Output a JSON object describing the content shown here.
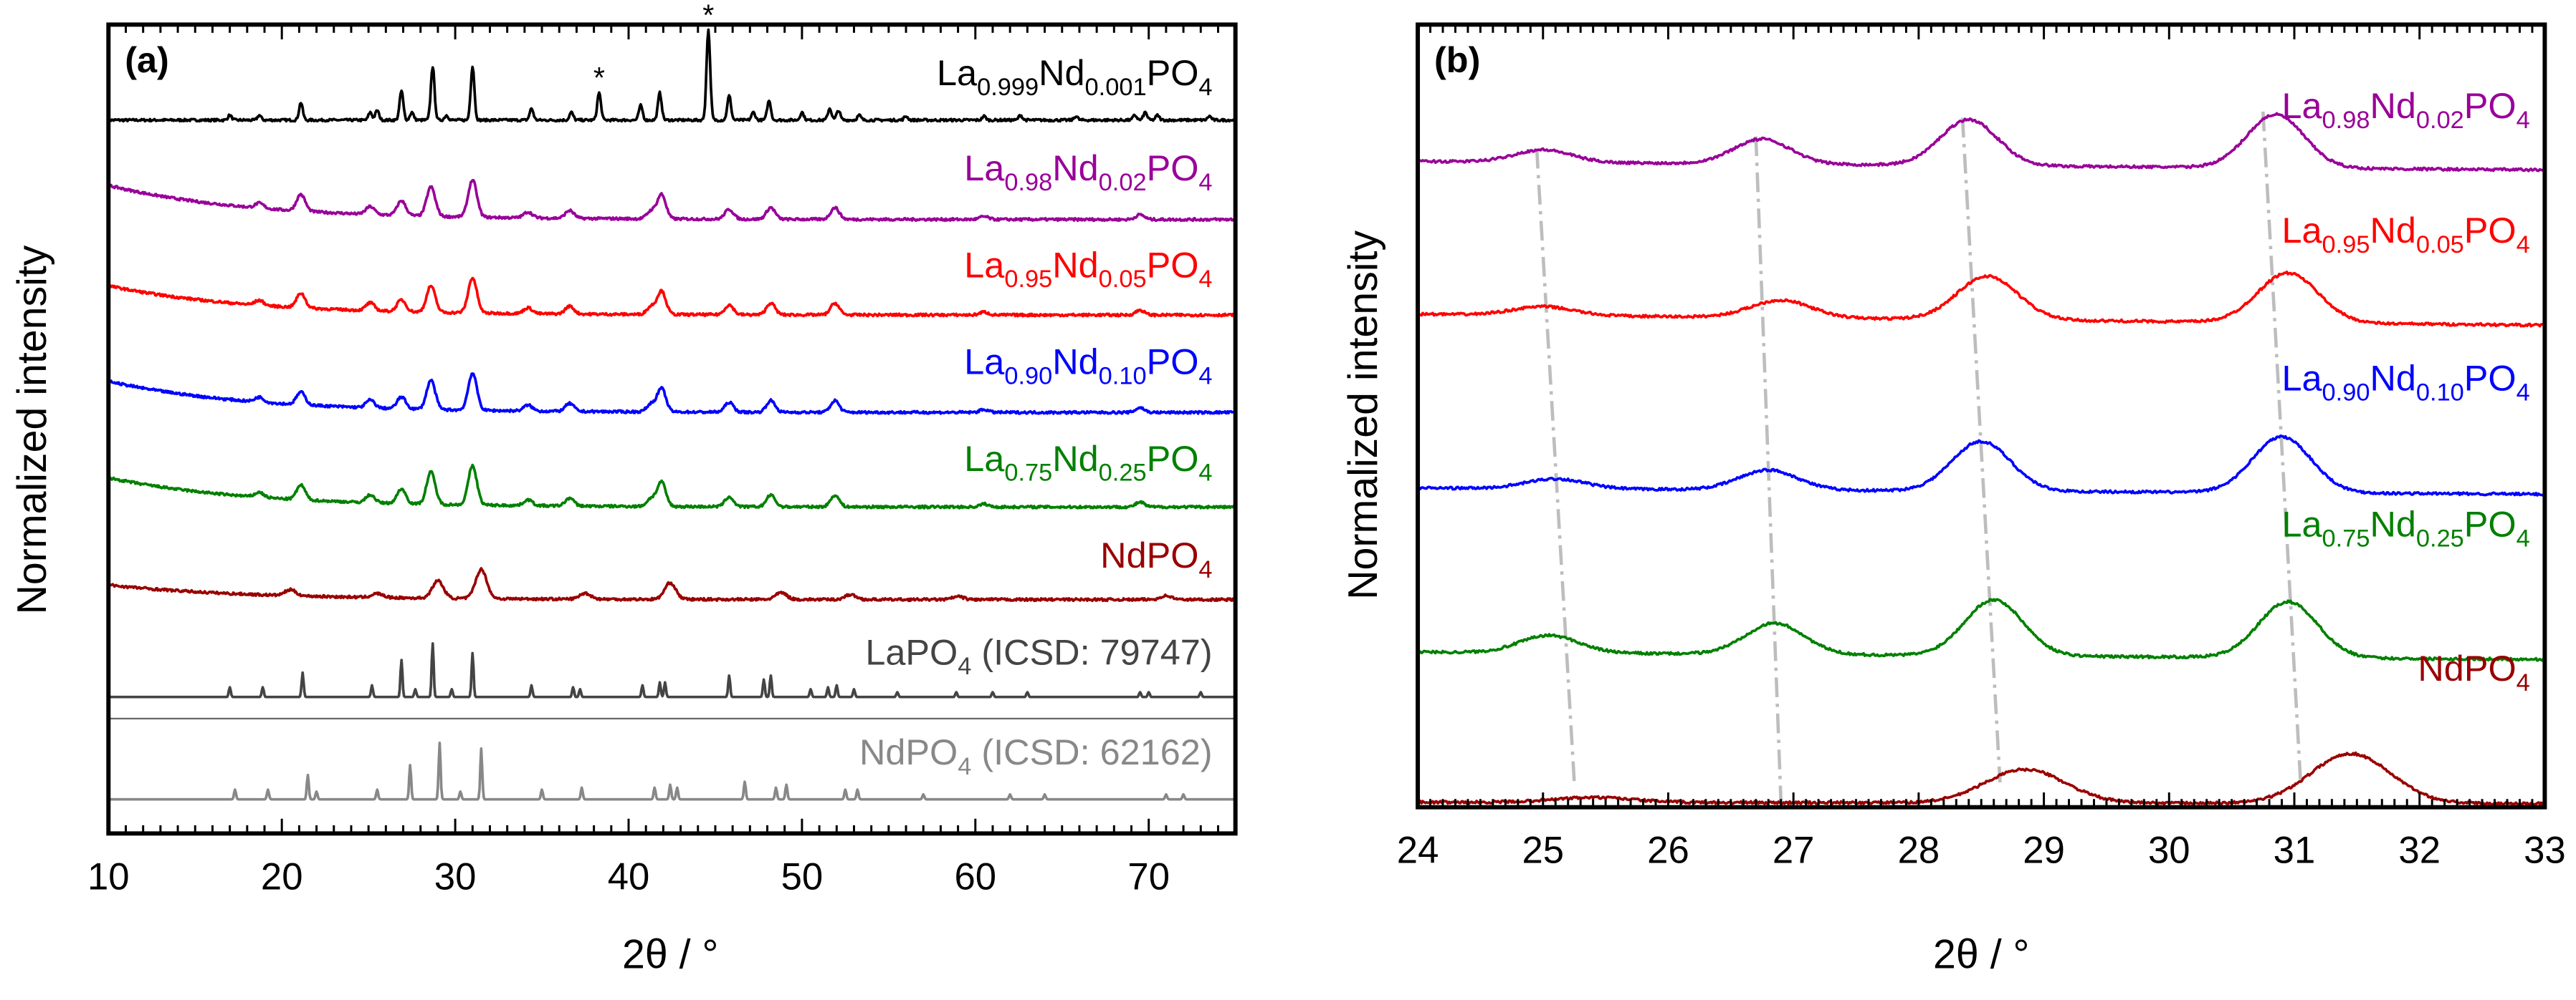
{
  "chart_data": [
    {
      "panel_label": "(a)",
      "type": "line",
      "xlabel": "2θ / °",
      "ylabel": "Normalized intensity",
      "xlim": [
        10,
        75
      ],
      "ylim": [
        0,
        8.3
      ],
      "xticks": [
        "10",
        "20",
        "30",
        "40",
        "50",
        "60",
        "70"
      ],
      "xtick_values": [
        10,
        20,
        30,
        40,
        50,
        60,
        70
      ],
      "grid": false,
      "annotations": [
        {
          "text": "*",
          "x": 38.3
        },
        {
          "text": "*",
          "x": 44.6
        }
      ],
      "series": [
        {
          "name": "La0.999Nd0.001PO4",
          "label_parts": [
            "La",
            "0.999",
            "Nd",
            "0.001",
            "PO",
            "4"
          ],
          "color": "#000000",
          "offset": 7.32,
          "width": 0.15,
          "background": 0.0,
          "peaks": [
            [
              17,
              0.05
            ],
            [
              18.7,
              0.05
            ],
            [
              21.1,
              0.18
            ],
            [
              25.1,
              0.08
            ],
            [
              25.5,
              0.1
            ],
            [
              26.9,
              0.3
            ],
            [
              27.5,
              0.08
            ],
            [
              28.7,
              0.55
            ],
            [
              29.5,
              0.05
            ],
            [
              31.0,
              0.55
            ],
            [
              34.4,
              0.12
            ],
            [
              36.7,
              0.08
            ],
            [
              38.3,
              0.28
            ],
            [
              40.7,
              0.15
            ],
            [
              41.8,
              0.28
            ],
            [
              44.6,
              0.92
            ],
            [
              45.8,
              0.25
            ],
            [
              47.2,
              0.08
            ],
            [
              48.1,
              0.2
            ],
            [
              50.0,
              0.08
            ],
            [
              51.6,
              0.12
            ],
            [
              52.1,
              0.1
            ],
            [
              53.3,
              0.05
            ],
            [
              56,
              0.04
            ],
            [
              60.5,
              0.04
            ],
            [
              62.6,
              0.05
            ],
            [
              65.8,
              0.04
            ],
            [
              69.2,
              0.05
            ],
            [
              69.8,
              0.08
            ],
            [
              70.5,
              0.05
            ],
            [
              73.5,
              0.04
            ]
          ]
        },
        {
          "name": "La0.98Nd0.02PO4",
          "label_parts": [
            "La",
            "0.98",
            "Nd",
            "0.02",
            "PO",
            "4"
          ],
          "color": "#990099",
          "offset": 6.3,
          "width": 0.35,
          "background": 0.35,
          "peaks": [
            [
              18.7,
              0.05
            ],
            [
              21.1,
              0.17
            ],
            [
              25.1,
              0.08
            ],
            [
              26.9,
              0.15
            ],
            [
              28.6,
              0.3
            ],
            [
              31.0,
              0.38
            ],
            [
              34.2,
              0.06
            ],
            [
              36.6,
              0.08
            ],
            [
              41.3,
              0.08
            ],
            [
              41.9,
              0.25
            ],
            [
              45.8,
              0.1
            ],
            [
              48.2,
              0.12
            ],
            [
              51.9,
              0.12
            ],
            [
              60.5,
              0.03
            ],
            [
              69.5,
              0.05
            ]
          ]
        },
        {
          "name": "La0.95Nd0.05PO4",
          "label_parts": [
            "La",
            "0.95",
            "Nd",
            "0.05",
            "PO",
            "4"
          ],
          "color": "#ff0000",
          "offset": 5.32,
          "width": 0.35,
          "background": 0.3,
          "peaks": [
            [
              18.7,
              0.05
            ],
            [
              21.1,
              0.15
            ],
            [
              25.1,
              0.08
            ],
            [
              26.9,
              0.12
            ],
            [
              28.6,
              0.27
            ],
            [
              31.0,
              0.36
            ],
            [
              34.2,
              0.06
            ],
            [
              36.6,
              0.08
            ],
            [
              41.3,
              0.08
            ],
            [
              41.9,
              0.24
            ],
            [
              45.8,
              0.1
            ],
            [
              48.2,
              0.12
            ],
            [
              51.9,
              0.12
            ],
            [
              60.5,
              0.03
            ],
            [
              69.5,
              0.05
            ]
          ]
        },
        {
          "name": "La0.90Nd0.10PO4",
          "label_parts": [
            "La",
            "0.90",
            "Nd",
            "0.10",
            "PO",
            "4"
          ],
          "color": "#0000ff",
          "offset": 4.32,
          "width": 0.35,
          "background": 0.32,
          "peaks": [
            [
              18.7,
              0.05
            ],
            [
              21.1,
              0.13
            ],
            [
              25.1,
              0.08
            ],
            [
              26.9,
              0.12
            ],
            [
              28.6,
              0.3
            ],
            [
              31.0,
              0.38
            ],
            [
              34.2,
              0.06
            ],
            [
              36.6,
              0.08
            ],
            [
              41.3,
              0.08
            ],
            [
              41.9,
              0.24
            ],
            [
              45.8,
              0.1
            ],
            [
              48.2,
              0.12
            ],
            [
              51.9,
              0.12
            ],
            [
              60.5,
              0.03
            ],
            [
              69.5,
              0.05
            ]
          ]
        },
        {
          "name": "La0.75Nd0.25PO4",
          "label_parts": [
            "La",
            "0.75",
            "Nd",
            "0.25",
            "PO",
            "4"
          ],
          "color": "#008000",
          "offset": 3.35,
          "width": 0.35,
          "background": 0.3,
          "peaks": [
            [
              18.7,
              0.05
            ],
            [
              21.1,
              0.15
            ],
            [
              25.1,
              0.08
            ],
            [
              26.9,
              0.15
            ],
            [
              28.6,
              0.33
            ],
            [
              31.0,
              0.4
            ],
            [
              34.2,
              0.06
            ],
            [
              36.6,
              0.08
            ],
            [
              41.3,
              0.08
            ],
            [
              41.9,
              0.25
            ],
            [
              45.8,
              0.1
            ],
            [
              48.2,
              0.12
            ],
            [
              51.9,
              0.12
            ],
            [
              60.5,
              0.03
            ],
            [
              69.5,
              0.05
            ]
          ]
        },
        {
          "name": "NdPO4",
          "label_parts": [
            "NdPO",
            "4"
          ],
          "color": "#990000",
          "offset": 2.4,
          "width": 0.45,
          "background": 0.15,
          "peaks": [
            [
              20.5,
              0.06
            ],
            [
              25.5,
              0.04
            ],
            [
              29.0,
              0.18
            ],
            [
              31.5,
              0.3
            ],
            [
              37.5,
              0.06
            ],
            [
              42.4,
              0.17
            ],
            [
              48.8,
              0.07
            ],
            [
              52.8,
              0.05
            ],
            [
              59,
              0.03
            ],
            [
              71,
              0.04
            ]
          ]
        },
        {
          "name": "LaPO4 (ICSD: 79747)",
          "label_parts": [
            "LaPO",
            "4",
            " (ICSD: 79747)"
          ],
          "color": "#444444",
          "offset": 1.4,
          "width": 0.08,
          "background": 0.0,
          "peaks": [
            [
              17.0,
              0.1
            ],
            [
              18.9,
              0.1
            ],
            [
              21.2,
              0.25
            ],
            [
              25.2,
              0.12
            ],
            [
              26.9,
              0.38
            ],
            [
              27.7,
              0.08
            ],
            [
              28.7,
              0.55
            ],
            [
              29.8,
              0.08
            ],
            [
              31.0,
              0.45
            ],
            [
              34.4,
              0.12
            ],
            [
              36.8,
              0.1
            ],
            [
              37.2,
              0.08
            ],
            [
              40.8,
              0.12
            ],
            [
              41.8,
              0.15
            ],
            [
              42.1,
              0.15
            ],
            [
              45.8,
              0.22
            ],
            [
              47.8,
              0.18
            ],
            [
              48.2,
              0.22
            ],
            [
              50.5,
              0.08
            ],
            [
              51.5,
              0.1
            ],
            [
              52.0,
              0.12
            ],
            [
              53.0,
              0.08
            ],
            [
              55.5,
              0.05
            ],
            [
              58.9,
              0.05
            ],
            [
              61,
              0.05
            ],
            [
              63,
              0.05
            ],
            [
              69.5,
              0.05
            ],
            [
              70,
              0.05
            ],
            [
              73,
              0.05
            ]
          ]
        },
        {
          "name": "NdPO4 (ICSD: 62162)",
          "label_parts": [
            "NdPO",
            "4",
            " (ICSD: 62162)"
          ],
          "color": "#888888",
          "offset": 0.35,
          "width": 0.08,
          "background": 0.0,
          "peaks": [
            [
              17.3,
              0.1
            ],
            [
              19.2,
              0.1
            ],
            [
              21.5,
              0.25
            ],
            [
              22,
              0.08
            ],
            [
              25.5,
              0.1
            ],
            [
              27.4,
              0.35
            ],
            [
              29.1,
              0.58
            ],
            [
              30.3,
              0.08
            ],
            [
              31.5,
              0.52
            ],
            [
              35,
              0.1
            ],
            [
              37.3,
              0.12
            ],
            [
              41.5,
              0.12
            ],
            [
              42.4,
              0.15
            ],
            [
              42.8,
              0.12
            ],
            [
              46.7,
              0.18
            ],
            [
              48.5,
              0.12
            ],
            [
              49.1,
              0.15
            ],
            [
              52.5,
              0.1
            ],
            [
              53.2,
              0.1
            ],
            [
              57,
              0.05
            ],
            [
              62,
              0.05
            ],
            [
              64,
              0.05
            ],
            [
              71,
              0.05
            ],
            [
              72,
              0.05
            ]
          ]
        }
      ]
    },
    {
      "panel_label": "(b)",
      "type": "line",
      "xlabel": "2θ / °",
      "ylabel": "Normalized intensity",
      "xlim": [
        24,
        33
      ],
      "ylim": [
        0,
        6.3
      ],
      "xticks": [
        "24",
        "25",
        "26",
        "27",
        "28",
        "29",
        "30",
        "31",
        "32",
        "33"
      ],
      "xtick_values": [
        24,
        25,
        26,
        27,
        28,
        29,
        30,
        31,
        32,
        33
      ],
      "grid": false,
      "guide_lines": [
        [
          [
            24.95,
            5.3
          ],
          [
            25.25,
            0.2
          ]
        ],
        [
          [
            26.7,
            5.4
          ],
          [
            26.9,
            0.05
          ]
        ],
        [
          [
            28.35,
            5.55
          ],
          [
            28.65,
            0.2
          ]
        ],
        [
          [
            30.75,
            5.6
          ],
          [
            31.05,
            0.2
          ]
        ]
      ],
      "series": [
        {
          "name": "La0.98Nd0.02PO4",
          "label_parts": [
            "La",
            "0.98",
            "Nd",
            "0.02",
            "PO",
            "4"
          ],
          "color": "#990099",
          "offset": 5.2,
          "slope": -0.07,
          "width": 0.32,
          "peaks": [
            [
              25.0,
              0.1
            ],
            [
              26.75,
              0.2
            ],
            [
              28.4,
              0.37
            ],
            [
              30.85,
              0.43
            ]
          ]
        },
        {
          "name": "La0.95Nd0.05PO4",
          "label_parts": [
            "La",
            "0.95",
            "Nd",
            "0.05",
            "PO",
            "4"
          ],
          "color": "#ff0000",
          "offset": 3.97,
          "slope": -0.09,
          "width": 0.34,
          "peaks": [
            [
              25.0,
              0.07
            ],
            [
              26.9,
              0.14
            ],
            [
              28.55,
              0.35
            ],
            [
              30.95,
              0.4
            ]
          ]
        },
        {
          "name": "La0.90Nd0.10PO4",
          "label_parts": [
            "La",
            "0.90",
            "Nd",
            "0.10",
            "PO",
            "4"
          ],
          "color": "#0000ff",
          "offset": 2.57,
          "slope": -0.05,
          "width": 0.33,
          "peaks": [
            [
              25.1,
              0.08
            ],
            [
              26.8,
              0.16
            ],
            [
              28.5,
              0.4
            ],
            [
              30.9,
              0.45
            ]
          ]
        },
        {
          "name": "La0.75Nd0.25PO4",
          "label_parts": [
            "La",
            "0.75",
            "Nd",
            "0.25",
            "PO",
            "4"
          ],
          "color": "#008000",
          "offset": 1.25,
          "slope": -0.06,
          "width": 0.33,
          "peaks": [
            [
              25.05,
              0.14
            ],
            [
              26.85,
              0.25
            ],
            [
              28.6,
              0.45
            ],
            [
              30.95,
              0.45
            ]
          ]
        },
        {
          "name": "NdPO4",
          "label_parts": [
            "NdPO",
            "4"
          ],
          "color": "#990000",
          "offset": 0.04,
          "slope": -0.01,
          "width": 0.45,
          "peaks": [
            [
              25.4,
              0.04
            ],
            [
              28.85,
              0.27
            ],
            [
              31.45,
              0.4
            ]
          ]
        }
      ]
    }
  ]
}
